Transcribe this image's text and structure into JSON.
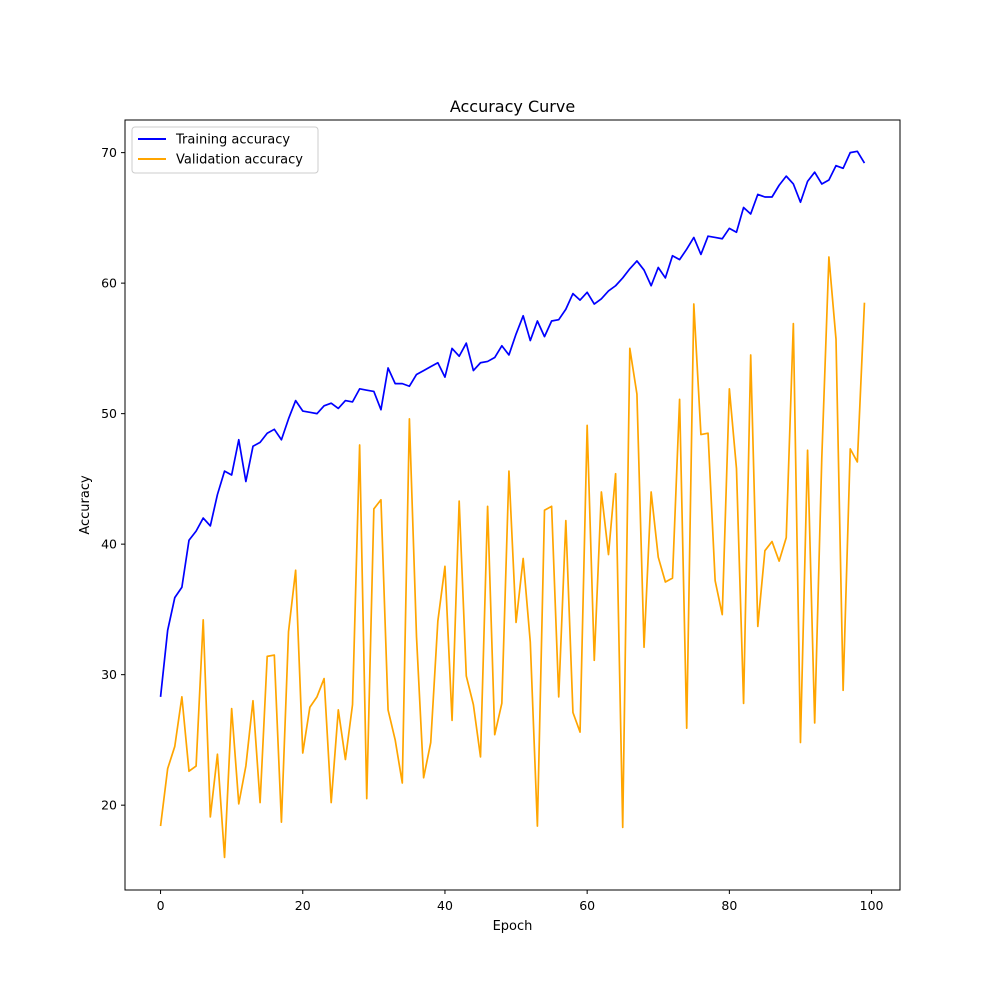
{
  "chart_data": {
    "type": "line",
    "title": "Accuracy Curve",
    "xlabel": "Epoch",
    "ylabel": "Accuracy",
    "xlim": [
      -5,
      104
    ],
    "ylim": [
      13.5,
      72.5
    ],
    "x_ticks": [
      0,
      20,
      40,
      60,
      80,
      100
    ],
    "y_ticks": [
      20,
      30,
      40,
      50,
      60,
      70
    ],
    "grid": false,
    "legend_position": "top-left",
    "series": [
      {
        "name": "Training accuracy",
        "color": "#0000ff",
        "values": [
          28.3,
          33.4,
          35.9,
          36.7,
          40.3,
          41.0,
          42.0,
          41.4,
          43.8,
          45.6,
          45.3,
          48.0,
          44.8,
          47.5,
          47.8,
          48.5,
          48.8,
          48.0,
          49.6,
          51.0,
          50.2,
          50.1,
          50.0,
          50.6,
          50.8,
          50.4,
          51.0,
          50.9,
          51.9,
          51.8,
          51.7,
          50.3,
          53.5,
          52.3,
          52.3,
          52.1,
          53.0,
          53.3,
          53.6,
          53.9,
          52.8,
          55.0,
          54.4,
          55.4,
          53.3,
          53.9,
          54.0,
          54.3,
          55.2,
          54.5,
          56.1,
          57.5,
          55.6,
          57.1,
          55.9,
          57.1,
          57.2,
          58.0,
          59.2,
          58.7,
          59.3,
          58.4,
          58.8,
          59.4,
          59.8,
          60.4,
          61.1,
          61.7,
          61.0,
          59.8,
          61.2,
          60.4,
          62.1,
          61.8,
          62.6,
          63.5,
          62.2,
          63.6,
          63.5,
          63.4,
          64.2,
          63.9,
          65.8,
          65.3,
          66.8,
          66.6,
          66.6,
          67.5,
          68.2,
          67.6,
          66.2,
          67.8,
          68.5,
          67.6,
          67.9,
          69.0,
          68.8,
          70.0,
          70.1,
          69.2
        ]
      },
      {
        "name": "Validation accuracy",
        "color": "#ffa500",
        "values": [
          18.4,
          22.8,
          24.5,
          28.3,
          22.6,
          23.0,
          34.2,
          19.1,
          23.9,
          16.0,
          27.4,
          20.1,
          23.0,
          28.0,
          20.2,
          31.4,
          31.5,
          18.7,
          33.3,
          38.0,
          24.0,
          27.5,
          28.3,
          29.7,
          20.2,
          27.3,
          23.5,
          27.7,
          47.6,
          20.5,
          42.7,
          43.4,
          27.3,
          25.0,
          21.7,
          49.6,
          32.9,
          22.1,
          24.8,
          34.1,
          38.3,
          26.5,
          43.3,
          29.9,
          27.7,
          23.7,
          42.9,
          25.4,
          27.8,
          45.6,
          34.0,
          38.9,
          32.5,
          18.4,
          42.6,
          42.9,
          28.3,
          41.8,
          27.1,
          25.6,
          49.1,
          31.1,
          44.0,
          39.2,
          45.4,
          18.3,
          55.0,
          51.5,
          32.1,
          44.0,
          39.0,
          37.1,
          37.4,
          51.1,
          25.9,
          58.4,
          48.4,
          48.5,
          37.2,
          34.6,
          51.9,
          45.8,
          27.8,
          54.5,
          33.7,
          39.5,
          40.2,
          38.7,
          40.5,
          56.9,
          24.8,
          47.2,
          26.3,
          46.6,
          62.0,
          55.7,
          28.8,
          47.3,
          46.3,
          58.5
        ]
      }
    ]
  }
}
